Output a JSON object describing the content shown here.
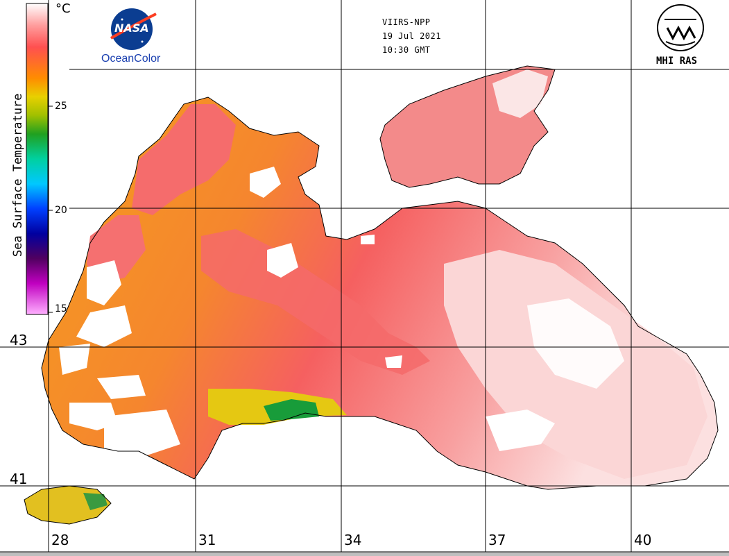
{
  "header": {
    "sensor": "VIIRS-NPP",
    "date": "19 Jul 2021",
    "time": "10:30 GMT"
  },
  "logos": {
    "nasa": "NASA",
    "oceancolor": "OceanColor",
    "mhi": "MHI RAS"
  },
  "colorbar": {
    "title": "Sea Surface Temperature",
    "unit": "°C",
    "ticks": [
      "25",
      "20",
      "15"
    ],
    "colors": [
      "#ffffff",
      "#ff9d9d",
      "#ff5050",
      "#ff8c00",
      "#e8d000",
      "#a0c000",
      "#20a020",
      "#00d0a0",
      "#00c8ff",
      "#0040ff",
      "#0000a0",
      "#500060",
      "#c000c0",
      "#ffb0ff"
    ]
  },
  "grid": {
    "latitudes": [
      "43",
      "41"
    ],
    "longitudes": [
      "28",
      "31",
      "34",
      "37",
      "40"
    ]
  },
  "map": {
    "title": "",
    "land_color": "#ffffff",
    "cloud_color": "#ffffff",
    "sst_colors": [
      "#ff6a6a",
      "#ff8a3a",
      "#f5a020",
      "#e8c010",
      "#9cc000",
      "#10a040"
    ]
  }
}
